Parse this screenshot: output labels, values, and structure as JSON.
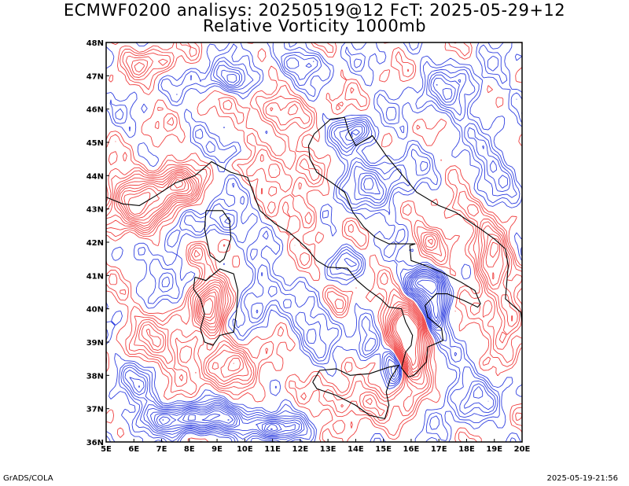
{
  "title": {
    "line1": "ECMWF0200 analisys: 20250519@12 FcT: 2025-05-29+12",
    "line2": "Relative Vorticity 1000mb"
  },
  "map": {
    "lon_range": [
      5,
      20
    ],
    "lat_range": [
      36,
      48
    ],
    "lon_ticks": [
      "5E",
      "6E",
      "7E",
      "8E",
      "9E",
      "10E",
      "11E",
      "12E",
      "13E",
      "14E",
      "15E",
      "16E",
      "17E",
      "18E",
      "19E",
      "20E"
    ],
    "lat_ticks": [
      "36N",
      "37N",
      "38N",
      "39N",
      "40N",
      "41N",
      "42N",
      "43N",
      "44N",
      "45N",
      "46N",
      "47N",
      "48N"
    ],
    "positive_color": "#f04040",
    "negative_color": "#3040e0",
    "coast_color": "#000000"
  },
  "footer": {
    "left": "GrADS/COLA",
    "right": "2025-05-19-21:56"
  }
}
